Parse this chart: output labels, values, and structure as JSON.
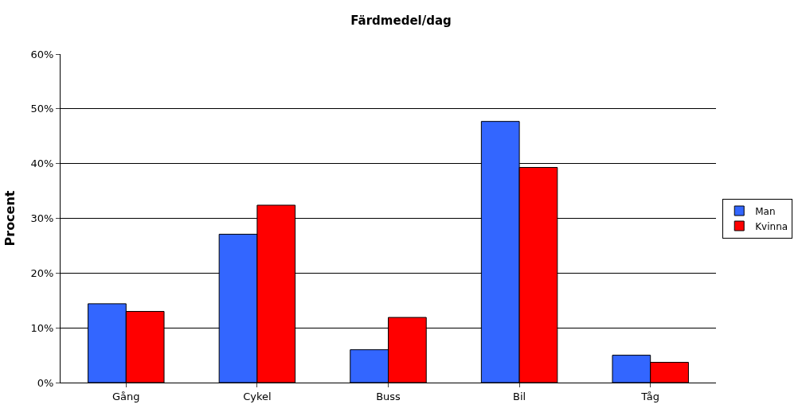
{
  "chart_data": {
    "type": "bar",
    "title": "Färdmedel/dag",
    "ylabel": "Procent",
    "categories": [
      "Gång",
      "Cykel",
      "Buss",
      "Bil",
      "Tåg"
    ],
    "series": [
      {
        "name": "Man",
        "color": "#3366ff",
        "values": [
          14.4,
          27.1,
          6.0,
          47.7,
          5.0
        ]
      },
      {
        "name": "Kvinna",
        "color": "#ff0000",
        "values": [
          13.0,
          32.4,
          11.9,
          39.3,
          3.7
        ]
      }
    ],
    "ylim": [
      0,
      60
    ],
    "yticks": [
      {
        "value": 0,
        "label": "0%"
      },
      {
        "value": 10,
        "label": "10%"
      },
      {
        "value": 20,
        "label": "20%"
      },
      {
        "value": 30,
        "label": "30%"
      },
      {
        "value": 40,
        "label": "40%"
      },
      {
        "value": 50,
        "label": "50%"
      },
      {
        "value": 60,
        "label": "60%"
      }
    ],
    "grid": "y",
    "legend": "right"
  }
}
